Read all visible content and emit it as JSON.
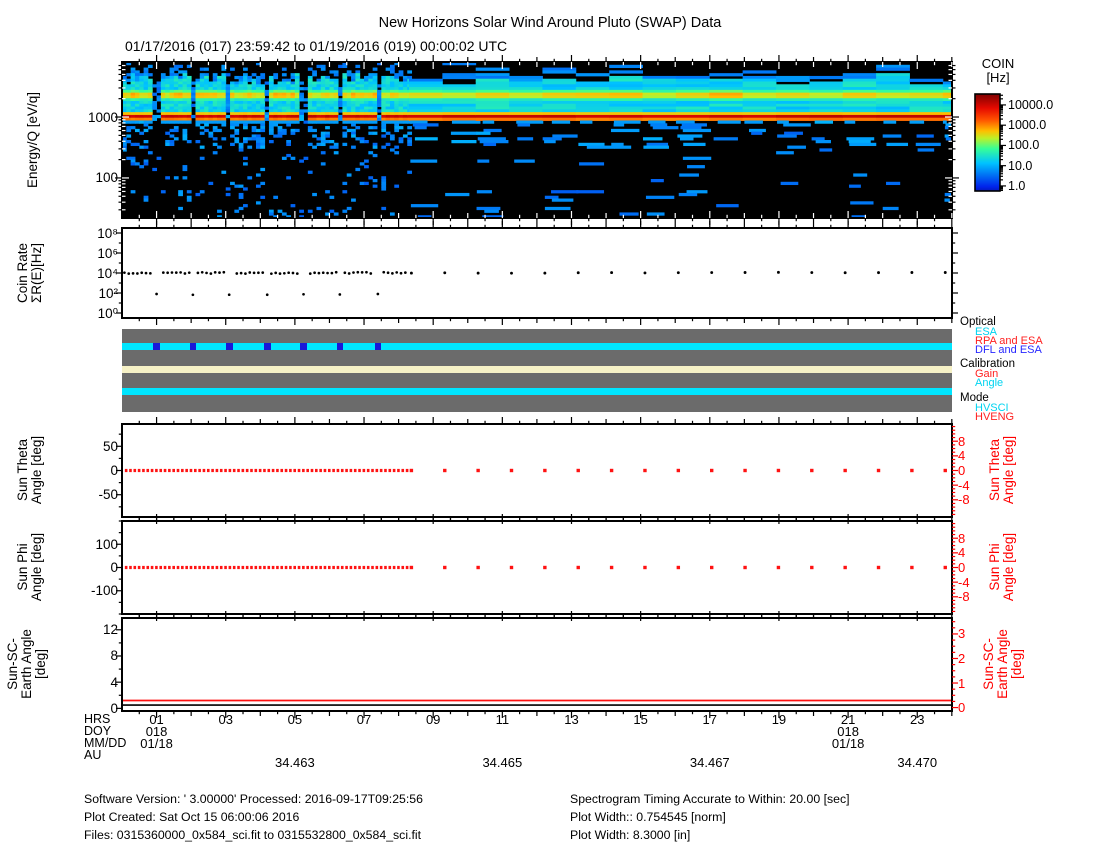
{
  "title": "New Horizons Solar Wind Around Pluto (SWAP) Data",
  "subtitle": "01/17/2016 (017) 23:59:42 to 01/19/2016 (019) 00:00:02 UTC",
  "colorbar": {
    "title_lines": [
      "COIN",
      "[Hz]"
    ],
    "tick_labels": [
      "10000.0",
      "1000.0",
      "100.0",
      "10.0",
      "1.0"
    ],
    "tick_values": [
      10000,
      1000,
      100,
      10,
      1
    ],
    "log_range": [
      -0.25,
      4.54
    ]
  },
  "left_axis": {
    "spectrogram": {
      "label_lines": [
        "Energy/Q [eV/q]"
      ],
      "tick_labels": [
        "1000",
        "100"
      ],
      "tick_values": [
        1000,
        100
      ]
    },
    "coin": {
      "label_lines": [
        "Coin Rate",
        "ΣR(E)[Hz]"
      ],
      "tick_labels": [
        "10⁸",
        "10⁶",
        "10⁴",
        "10²",
        "10⁰"
      ],
      "tick_values": [
        8,
        6,
        4,
        2,
        0
      ]
    },
    "theta": {
      "label_lines": [
        "Sun Theta",
        "Angle [deg]"
      ],
      "tick_labels": [
        "50",
        "0",
        "-50"
      ],
      "tick_values": [
        50,
        0,
        -50
      ]
    },
    "phi": {
      "label_lines": [
        "Sun Phi",
        "Angle [deg]"
      ],
      "tick_labels": [
        "100",
        "0",
        "-100"
      ],
      "tick_values": [
        100,
        0,
        -100
      ]
    },
    "earth": {
      "label_lines": [
        "Sun-SC-",
        "Earth Angle",
        "[deg]"
      ],
      "tick_labels": [
        "12",
        "8",
        "4",
        "0"
      ],
      "tick_values": [
        12,
        8,
        4,
        0
      ]
    }
  },
  "right_axis": {
    "theta": {
      "label_lines": [
        "Sun Theta",
        "Angle [deg]"
      ],
      "tick_labels": [
        "8",
        "4",
        "0",
        "-4",
        "-8"
      ],
      "tick_values": [
        8,
        4,
        0,
        -4,
        -8
      ]
    },
    "phi": {
      "label_lines": [
        "Sun Phi",
        "Angle [deg]"
      ],
      "tick_labels": [
        "8",
        "4",
        "0",
        "-4",
        "-8"
      ],
      "tick_values": [
        8,
        4,
        0,
        -4,
        -8
      ]
    },
    "earth": {
      "label_lines": [
        "Sun-SC-",
        "Earth Angle",
        "[deg]"
      ],
      "tick_labels": [
        "3",
        "2",
        "1",
        "0"
      ],
      "tick_values": [
        3,
        2,
        1,
        0
      ]
    }
  },
  "status_legend": [
    {
      "header": "Optical",
      "items": [
        {
          "label": "ESA",
          "color": "#00d4f0"
        },
        {
          "label": "RPA and ESA",
          "color": "#ff2020"
        },
        {
          "label": "DFL and ESA",
          "color": "#2828ff"
        }
      ]
    },
    {
      "header": "Calibration",
      "items": [
        {
          "label": "Gain",
          "color": "#ff2020"
        },
        {
          "label": "Angle",
          "color": "#00d4f0"
        }
      ]
    },
    {
      "header": "Mode",
      "items": [
        {
          "label": "HVSCI",
          "color": "#00d4f0"
        },
        {
          "label": "HVENG",
          "color": "#ff2020"
        }
      ]
    }
  ],
  "xaxis": {
    "row_labels": [
      "HRS",
      "DOY",
      "MM/DD",
      "AU"
    ],
    "total_hours": 24.005,
    "hours": [
      {
        "h": 1,
        "label": "01"
      },
      {
        "h": 3,
        "label": "03"
      },
      {
        "h": 5,
        "label": "05"
      },
      {
        "h": 7,
        "label": "07"
      },
      {
        "h": 9,
        "label": "09"
      },
      {
        "h": 11,
        "label": "11"
      },
      {
        "h": 13,
        "label": "13"
      },
      {
        "h": 15,
        "label": "15"
      },
      {
        "h": 17,
        "label": "17"
      },
      {
        "h": 19,
        "label": "19"
      },
      {
        "h": 21,
        "label": "21"
      },
      {
        "h": 23,
        "label": "23"
      }
    ],
    "doy": [
      {
        "h": 1,
        "label": "018"
      },
      {
        "h": 21,
        "label": "018"
      }
    ],
    "mmdd": [
      {
        "h": 1,
        "label": "01/18"
      },
      {
        "h": 21,
        "label": "01/18"
      }
    ],
    "au": [
      {
        "h": 5,
        "label": "34.463"
      },
      {
        "h": 11,
        "label": "34.465"
      },
      {
        "h": 17,
        "label": "34.467"
      },
      {
        "h": 23,
        "label": "34.470"
      }
    ]
  },
  "footer": {
    "left": [
      "Software Version:  ' 3.00000'  Processed: 2016-09-17T09:25:56",
      "Plot Created: Sat Oct 15 06:00:06 2016",
      "Files: 0315360000_0x584_sci.fit to 0315532800_0x584_sci.fit"
    ],
    "right": [
      "Spectrogram Timing Accurate to Within: 20.00 [sec]",
      "Plot Width:: 0.754545 [norm]",
      "Plot Width: 8.3000 [in]"
    ]
  },
  "chart_data": [
    {
      "type": "heatmap",
      "panel": "spectrogram",
      "ylabel": "Energy/Q [eV/q]",
      "y_scale": "log",
      "ylim": [
        22,
        8000
      ],
      "x_range_hours": [
        0,
        24.005
      ],
      "z_label": "COIN [Hz]",
      "z_range_hz": [
        1,
        30000
      ],
      "features": {
        "proton_beam": {
          "center_ev": 1000,
          "peak_hz": 12000
        },
        "alpha_band": {
          "center_ev": 2300,
          "peak_hz": 400
        },
        "suprathermal_band": {
          "range_ev": [
            1200,
            4200
          ],
          "rate_hz": 25
        },
        "background_hz": 1,
        "dense_cadence_min": 7.5,
        "dense_end_hr": 8.3,
        "sparse_cadence_hr": 0.965,
        "data_gap_hours": [
          1.0,
          2.05,
          3.1,
          4.2,
          5.25,
          6.3,
          7.4
        ]
      }
    },
    {
      "type": "scatter",
      "panel": "coin_rate",
      "ylabel": "Coin Rate ΣR(E)[Hz]",
      "y_scale": "log",
      "log_ylim": [
        -0.5,
        8.5
      ],
      "series": [
        {
          "name": "summed_coincidence_rate",
          "approx_value_hz": 10000,
          "color": "#000000"
        },
        {
          "name": "calibration_scans",
          "approx_value_hz": 70,
          "color": "#000000",
          "hours": [
            1.0,
            2.05,
            3.1,
            4.2,
            5.25,
            6.3,
            7.4
          ]
        }
      ]
    },
    {
      "type": "status",
      "panel": "instrument_state",
      "background": "#6b6b6b",
      "bars": [
        {
          "group": "Optical",
          "state": "ESA",
          "color": "#00e6ff",
          "y_frac": 0.168,
          "h_frac": 0.085,
          "interruptions": {
            "state": "DFL and ESA",
            "color": "#1818d8",
            "hours": [
              1.0,
              2.05,
              3.1,
              4.2,
              5.25,
              6.3,
              7.4
            ]
          }
        },
        {
          "group": "Calibration",
          "state": "none",
          "color": "#f6f1c6",
          "y_frac": 0.445,
          "h_frac": 0.085
        },
        {
          "group": "Mode",
          "state": "HVSCI",
          "color": "#00e6ff",
          "y_frac": 0.71,
          "h_frac": 0.085
        }
      ]
    },
    {
      "type": "scatter",
      "panel": "sun_theta",
      "value_deg": 0,
      "ylim": [
        -96,
        96
      ],
      "right_ylim": [
        -12.7,
        12.7
      ],
      "color": "#ff1212"
    },
    {
      "type": "scatter",
      "panel": "sun_phi",
      "value_deg": 0,
      "ylim": [
        -200,
        200
      ],
      "right_ylim": [
        -12.7,
        12.7
      ],
      "color": "#ff1212"
    },
    {
      "type": "line",
      "panel": "sun_sc_earth",
      "ylim": [
        -0.4,
        13.8
      ],
      "right_ylim": [
        -0.14,
        3.65
      ],
      "lines": [
        {
          "name": "sun_sc_earth_angle_right_axis",
          "color": "#ff1212",
          "value_deg": 1.2
        },
        {
          "name": "sun_sc_earth_angle_left_axis",
          "color": "#000000",
          "value_deg": 0.5
        }
      ]
    }
  ],
  "sampling": {
    "dense_dt_hr": 0.125,
    "dense_end_hr": 8.3,
    "sparse_start_hr": 8.37,
    "sparse_dt_hr": 0.965
  }
}
